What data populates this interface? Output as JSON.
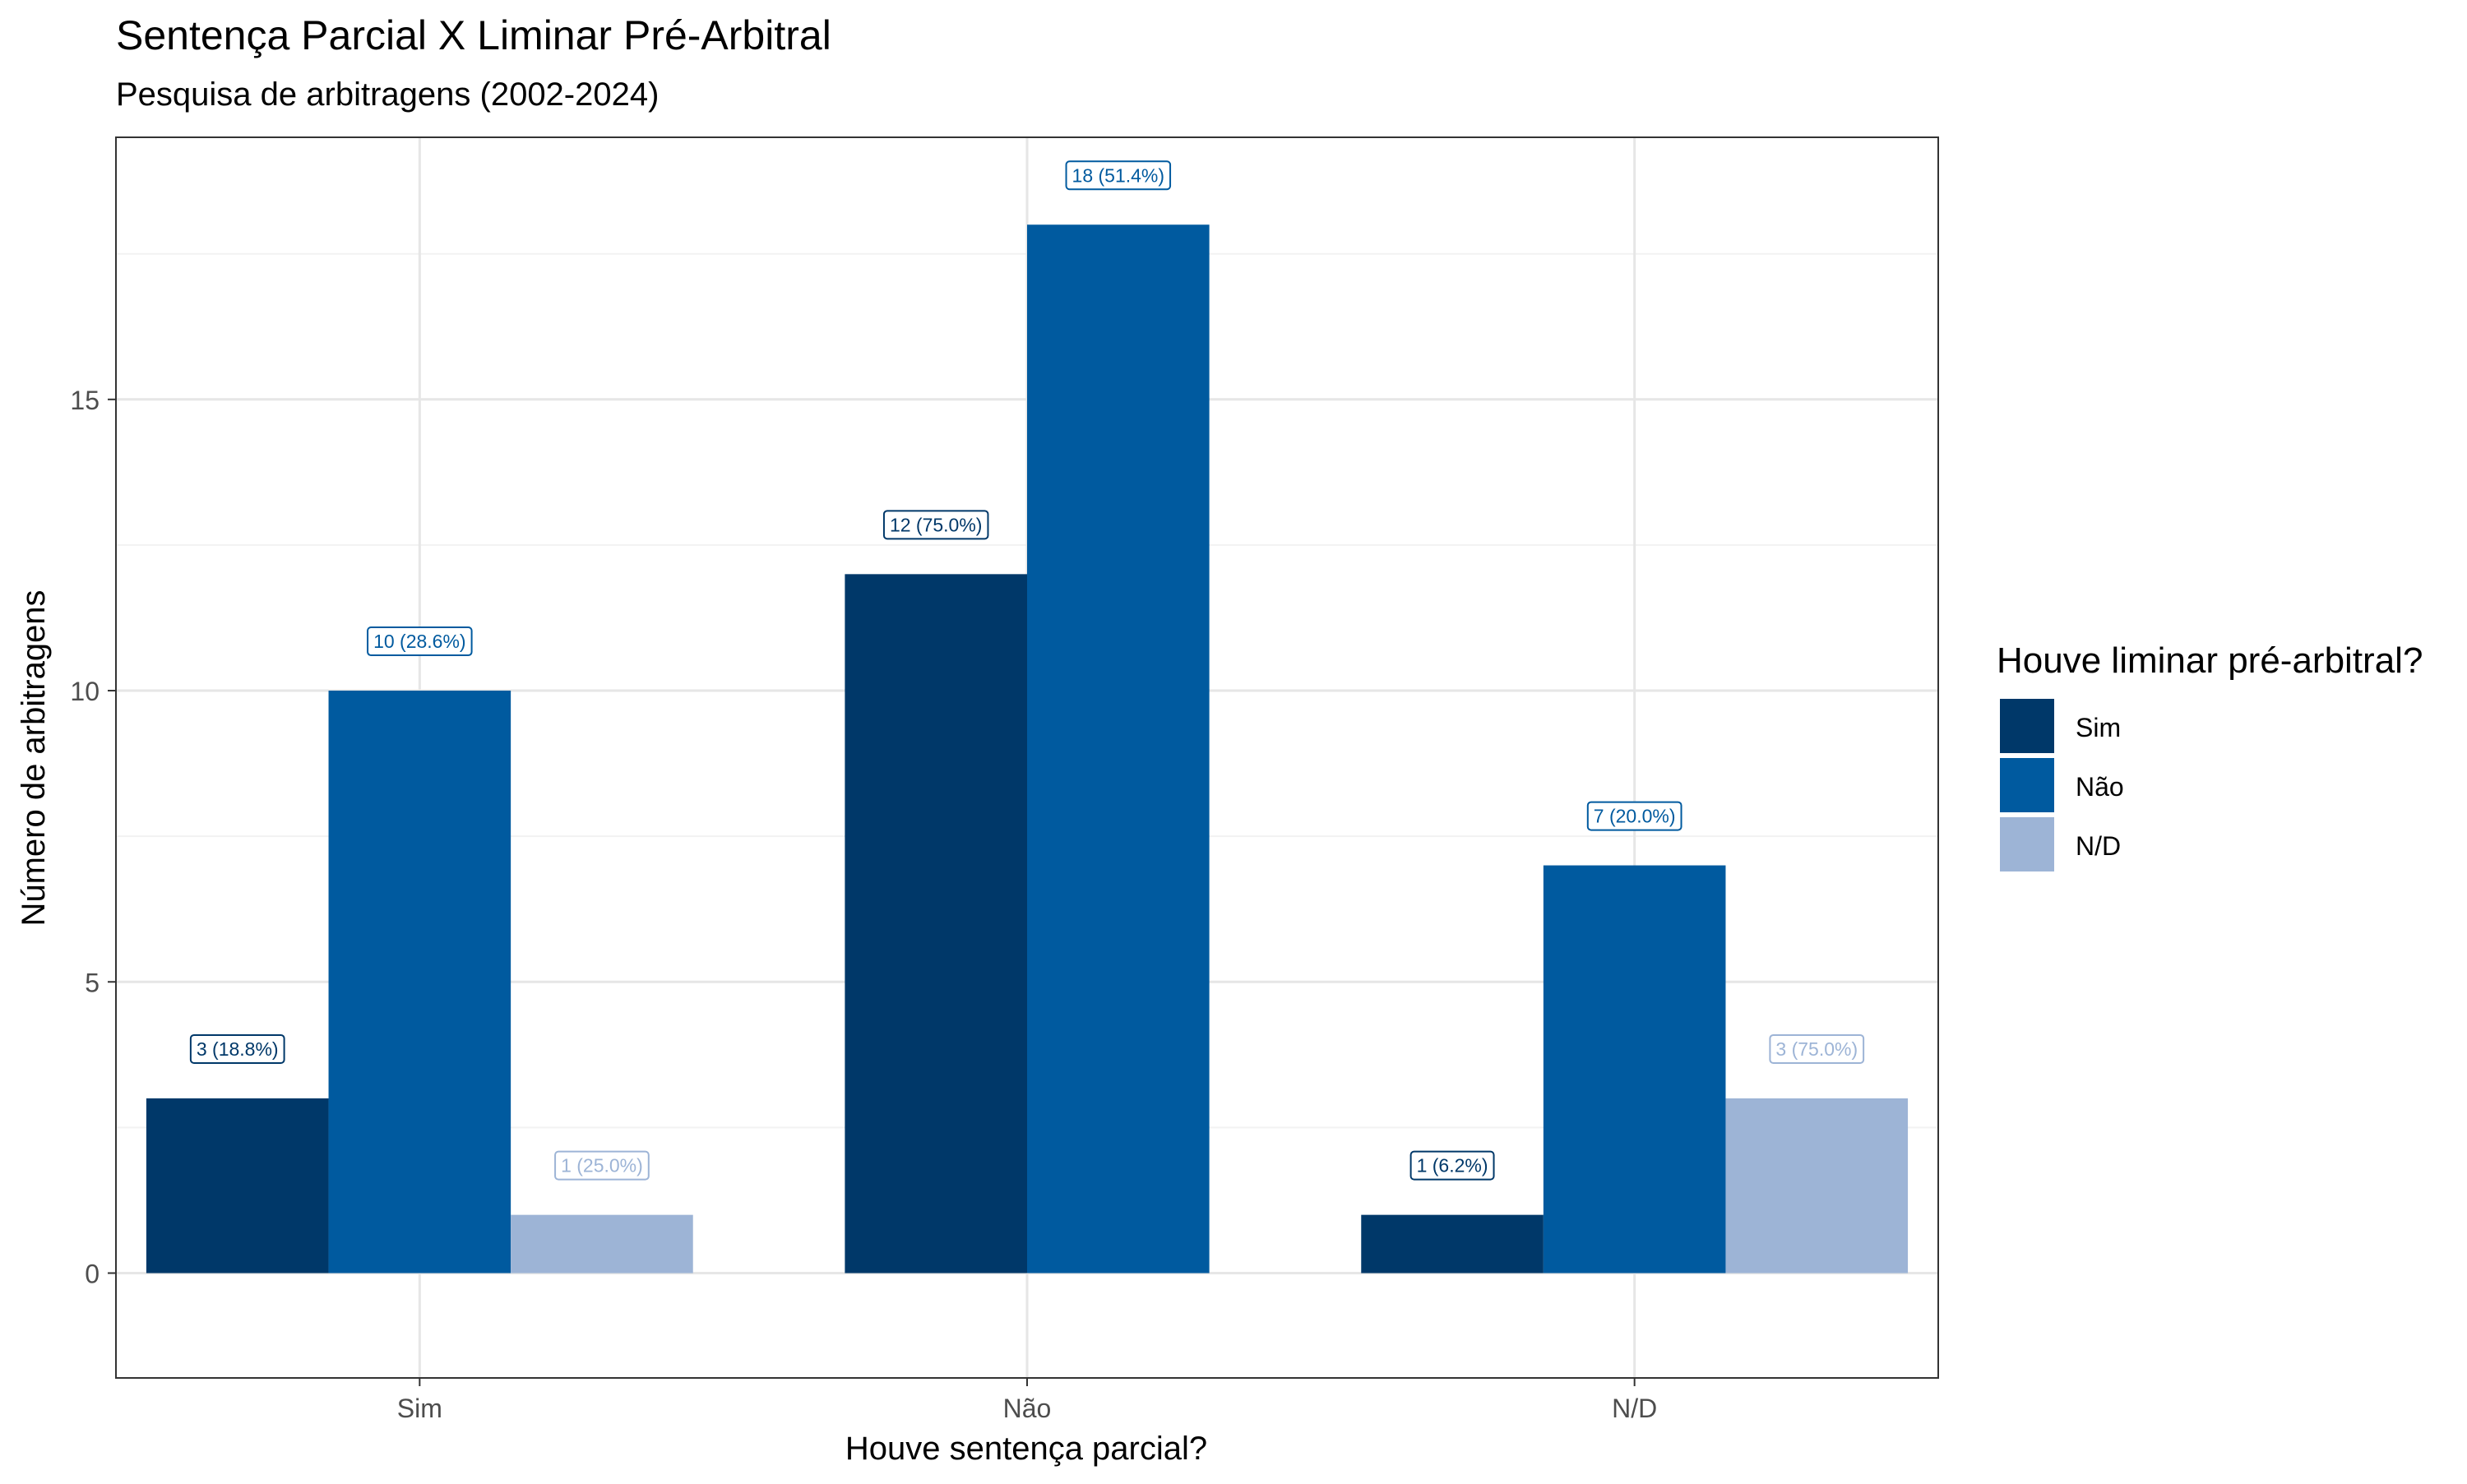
{
  "chart_data": {
    "type": "bar",
    "title": "Sentença Parcial X Liminar Pré-Arbitral",
    "subtitle": "Pesquisa de arbitragens (2002-2024)",
    "xlabel": "Houve sentença parcial?",
    "ylabel": "Número de arbitragens",
    "categories": [
      "Sim",
      "Não",
      "N/D"
    ],
    "ylim": [
      -1.8,
      19.5
    ],
    "yticks": [
      0,
      5,
      10,
      15
    ],
    "grid": true,
    "legend": {
      "title": "Houve liminar pré-arbitral?",
      "position": "right"
    },
    "series": [
      {
        "name": "Sim",
        "color": "#003869",
        "values": [
          3,
          12,
          1
        ],
        "labels": [
          "3 (18.8%)",
          "12 (75.0%)",
          "1 (6.2%)"
        ]
      },
      {
        "name": "Não",
        "color": "#005a9f",
        "values": [
          10,
          18,
          7
        ],
        "labels": [
          "10 (28.6%)",
          "18 (51.4%)",
          "7 (20.0%)"
        ]
      },
      {
        "name": "N/D",
        "color": "#9db4d6",
        "values": [
          1,
          null,
          3
        ],
        "labels": [
          "1 (25.0%)",
          "",
          "3 (75.0%)"
        ]
      }
    ]
  }
}
